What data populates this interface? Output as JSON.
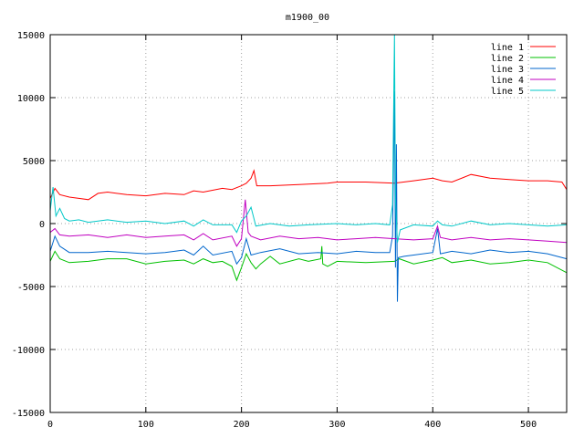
{
  "chart_data": {
    "type": "line",
    "title": "m1900_00",
    "xlabel": "",
    "ylabel": "",
    "xlim": [
      0,
      540
    ],
    "ylim": [
      -15000,
      15000
    ],
    "x_ticks": [
      0,
      100,
      200,
      300,
      400,
      500
    ],
    "y_ticks": [
      -15000,
      -10000,
      -5000,
      0,
      5000,
      10000,
      15000
    ],
    "grid": true,
    "legend_position": "top-right",
    "series": [
      {
        "name": "line 1",
        "color": "#ff0000",
        "points": [
          [
            0,
            2000
          ],
          [
            5,
            2800
          ],
          [
            10,
            2300
          ],
          [
            20,
            2100
          ],
          [
            30,
            2000
          ],
          [
            40,
            1900
          ],
          [
            50,
            2400
          ],
          [
            60,
            2500
          ],
          [
            80,
            2300
          ],
          [
            100,
            2200
          ],
          [
            120,
            2400
          ],
          [
            140,
            2300
          ],
          [
            150,
            2600
          ],
          [
            160,
            2500
          ],
          [
            180,
            2800
          ],
          [
            190,
            2700
          ],
          [
            200,
            3000
          ],
          [
            205,
            3200
          ],
          [
            210,
            3600
          ],
          [
            213,
            4200
          ],
          [
            216,
            3000
          ],
          [
            230,
            3000
          ],
          [
            260,
            3100
          ],
          [
            290,
            3200
          ],
          [
            300,
            3300
          ],
          [
            330,
            3300
          ],
          [
            360,
            3200
          ],
          [
            380,
            3400
          ],
          [
            400,
            3600
          ],
          [
            410,
            3400
          ],
          [
            420,
            3300
          ],
          [
            440,
            3900
          ],
          [
            460,
            3600
          ],
          [
            480,
            3500
          ],
          [
            500,
            3400
          ],
          [
            520,
            3400
          ],
          [
            535,
            3300
          ],
          [
            540,
            2700
          ]
        ]
      },
      {
        "name": "line 2",
        "color": "#00c000",
        "points": [
          [
            0,
            -3000
          ],
          [
            5,
            -2200
          ],
          [
            10,
            -2800
          ],
          [
            20,
            -3100
          ],
          [
            40,
            -3000
          ],
          [
            60,
            -2800
          ],
          [
            80,
            -2800
          ],
          [
            100,
            -3200
          ],
          [
            120,
            -3000
          ],
          [
            140,
            -2900
          ],
          [
            150,
            -3200
          ],
          [
            160,
            -2800
          ],
          [
            170,
            -3100
          ],
          [
            180,
            -3000
          ],
          [
            190,
            -3400
          ],
          [
            195,
            -4500
          ],
          [
            200,
            -3500
          ],
          [
            205,
            -2400
          ],
          [
            210,
            -3100
          ],
          [
            215,
            -3600
          ],
          [
            220,
            -3200
          ],
          [
            230,
            -2600
          ],
          [
            240,
            -3200
          ],
          [
            260,
            -2800
          ],
          [
            270,
            -3000
          ],
          [
            283,
            -2800
          ],
          [
            284,
            -1800
          ],
          [
            285,
            -3200
          ],
          [
            290,
            -3400
          ],
          [
            300,
            -3000
          ],
          [
            330,
            -3100
          ],
          [
            360,
            -3000
          ],
          [
            365,
            -2800
          ],
          [
            380,
            -3200
          ],
          [
            400,
            -2900
          ],
          [
            410,
            -2700
          ],
          [
            420,
            -3100
          ],
          [
            440,
            -2900
          ],
          [
            460,
            -3200
          ],
          [
            480,
            -3100
          ],
          [
            500,
            -2900
          ],
          [
            520,
            -3100
          ],
          [
            540,
            -3900
          ]
        ]
      },
      {
        "name": "line 3",
        "color": "#0066cc",
        "points": [
          [
            0,
            -2200
          ],
          [
            5,
            -1000
          ],
          [
            10,
            -1800
          ],
          [
            20,
            -2300
          ],
          [
            40,
            -2300
          ],
          [
            60,
            -2200
          ],
          [
            80,
            -2300
          ],
          [
            100,
            -2400
          ],
          [
            120,
            -2300
          ],
          [
            140,
            -2100
          ],
          [
            150,
            -2500
          ],
          [
            160,
            -1800
          ],
          [
            170,
            -2500
          ],
          [
            190,
            -2200
          ],
          [
            195,
            -3200
          ],
          [
            200,
            -2700
          ],
          [
            205,
            -1200
          ],
          [
            210,
            -2500
          ],
          [
            220,
            -2300
          ],
          [
            240,
            -2000
          ],
          [
            260,
            -2400
          ],
          [
            280,
            -2300
          ],
          [
            300,
            -2400
          ],
          [
            320,
            -2200
          ],
          [
            340,
            -2300
          ],
          [
            355,
            -2300
          ],
          [
            358,
            -1000
          ],
          [
            360,
            10500
          ],
          [
            361,
            -3500
          ],
          [
            362,
            6300
          ],
          [
            363,
            -6200
          ],
          [
            364,
            -2700
          ],
          [
            370,
            -2600
          ],
          [
            380,
            -2500
          ],
          [
            400,
            -2300
          ],
          [
            405,
            -400
          ],
          [
            408,
            -2400
          ],
          [
            420,
            -2200
          ],
          [
            440,
            -2400
          ],
          [
            460,
            -2100
          ],
          [
            480,
            -2300
          ],
          [
            500,
            -2200
          ],
          [
            520,
            -2400
          ],
          [
            540,
            -2800
          ]
        ]
      },
      {
        "name": "line 4",
        "color": "#c000c0",
        "points": [
          [
            0,
            -700
          ],
          [
            5,
            -400
          ],
          [
            10,
            -900
          ],
          [
            20,
            -1000
          ],
          [
            40,
            -900
          ],
          [
            60,
            -1100
          ],
          [
            80,
            -900
          ],
          [
            100,
            -1100
          ],
          [
            120,
            -1000
          ],
          [
            140,
            -900
          ],
          [
            150,
            -1300
          ],
          [
            160,
            -800
          ],
          [
            170,
            -1300
          ],
          [
            190,
            -1000
          ],
          [
            195,
            -1800
          ],
          [
            200,
            -1200
          ],
          [
            204,
            1900
          ],
          [
            207,
            -700
          ],
          [
            210,
            -1000
          ],
          [
            220,
            -1300
          ],
          [
            240,
            -1000
          ],
          [
            260,
            -1200
          ],
          [
            280,
            -1100
          ],
          [
            300,
            -1300
          ],
          [
            320,
            -1200
          ],
          [
            340,
            -1100
          ],
          [
            360,
            -1200
          ],
          [
            380,
            -1300
          ],
          [
            400,
            -1200
          ],
          [
            405,
            -200
          ],
          [
            408,
            -1100
          ],
          [
            420,
            -1300
          ],
          [
            440,
            -1100
          ],
          [
            460,
            -1300
          ],
          [
            480,
            -1200
          ],
          [
            500,
            -1300
          ],
          [
            520,
            -1400
          ],
          [
            540,
            -1500
          ]
        ]
      },
      {
        "name": "line 5",
        "color": "#00c8c8",
        "points": [
          [
            0,
            1000
          ],
          [
            3,
            2900
          ],
          [
            6,
            600
          ],
          [
            10,
            1200
          ],
          [
            15,
            400
          ],
          [
            20,
            200
          ],
          [
            30,
            300
          ],
          [
            40,
            100
          ],
          [
            60,
            300
          ],
          [
            80,
            100
          ],
          [
            100,
            200
          ],
          [
            120,
            0
          ],
          [
            140,
            200
          ],
          [
            150,
            -200
          ],
          [
            160,
            300
          ],
          [
            170,
            -100
          ],
          [
            190,
            -100
          ],
          [
            195,
            -700
          ],
          [
            200,
            200
          ],
          [
            205,
            600
          ],
          [
            210,
            1300
          ],
          [
            215,
            -200
          ],
          [
            230,
            0
          ],
          [
            250,
            -200
          ],
          [
            270,
            -100
          ],
          [
            300,
            0
          ],
          [
            320,
            -100
          ],
          [
            340,
            0
          ],
          [
            355,
            -100
          ],
          [
            358,
            1500
          ],
          [
            360,
            15000
          ],
          [
            361,
            2000
          ],
          [
            363,
            -1500
          ],
          [
            366,
            -500
          ],
          [
            380,
            -100
          ],
          [
            400,
            -200
          ],
          [
            405,
            200
          ],
          [
            410,
            -100
          ],
          [
            420,
            -200
          ],
          [
            440,
            200
          ],
          [
            460,
            -100
          ],
          [
            480,
            0
          ],
          [
            500,
            -100
          ],
          [
            520,
            -200
          ],
          [
            540,
            -100
          ]
        ]
      }
    ]
  }
}
